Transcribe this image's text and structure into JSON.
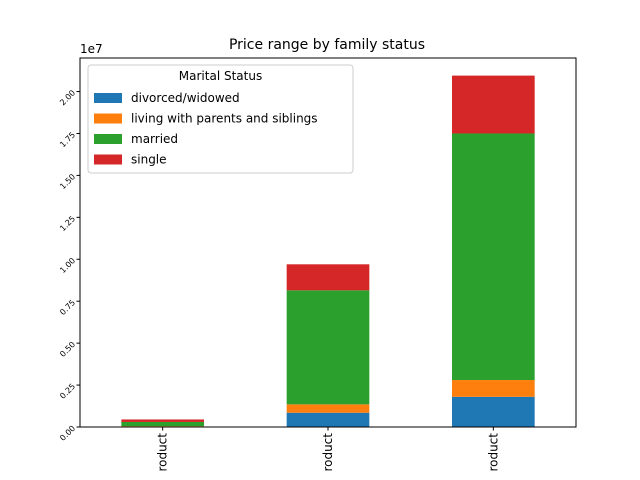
{
  "chart_data": {
    "type": "bar",
    "stacked": true,
    "title": "Price range by family status",
    "xlabel": "",
    "ylabel": "",
    "scale_label": "1e7",
    "categories": [
      "roduct",
      "roduct",
      "roduct"
    ],
    "ylim": [
      0,
      22000000
    ],
    "yticks": [
      0,
      2500000,
      5000000,
      7500000,
      10000000,
      12500000,
      15000000,
      17500000,
      20000000
    ],
    "ytick_labels": [
      "0.00",
      "0.25",
      "0.50",
      "0.75",
      "1.00",
      "1.25",
      "1.50",
      "1.75",
      "2.00"
    ],
    "legend_title": "Marital Status",
    "legend_position": "top-left",
    "series": [
      {
        "name": "divorced/widowed",
        "color": "#1f77b4",
        "values": [
          30000,
          850000,
          1800000
        ]
      },
      {
        "name": "living with parents and siblings",
        "color": "#ff7f0e",
        "values": [
          20000,
          500000,
          1000000
        ]
      },
      {
        "name": "married",
        "color": "#2ca02c",
        "values": [
          250000,
          6800000,
          14700000
        ]
      },
      {
        "name": "single",
        "color": "#d62728",
        "values": [
          150000,
          1550000,
          3450000
        ]
      }
    ]
  }
}
